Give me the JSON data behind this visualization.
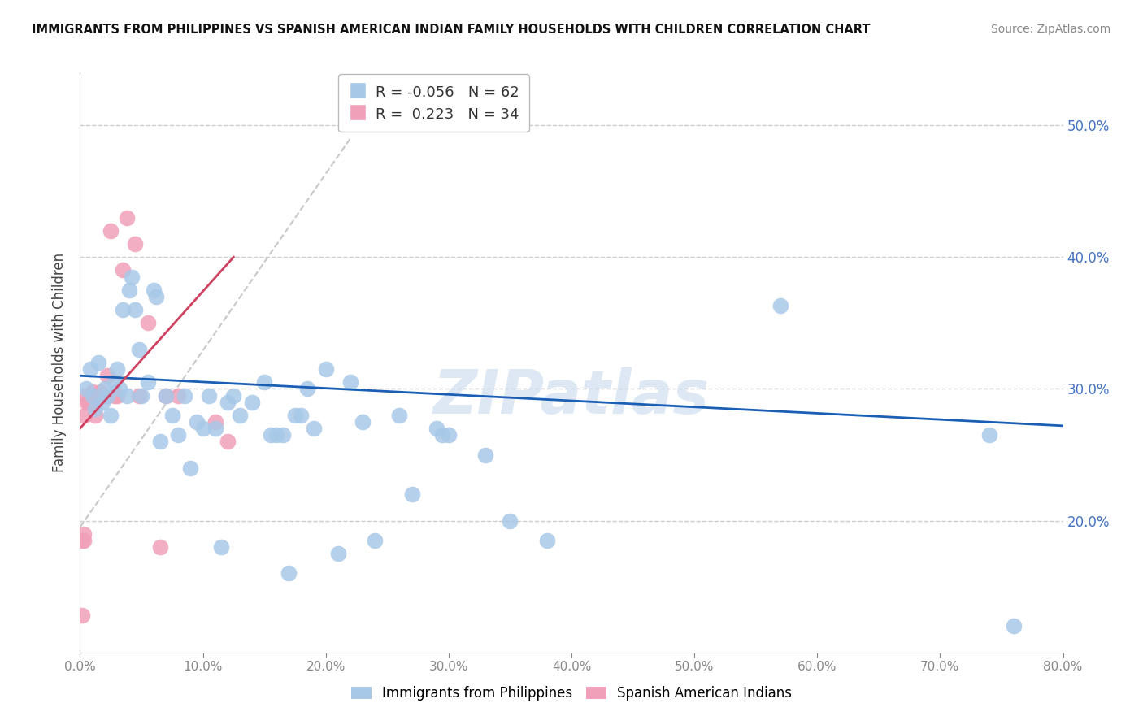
{
  "title": "IMMIGRANTS FROM PHILIPPINES VS SPANISH AMERICAN INDIAN FAMILY HOUSEHOLDS WITH CHILDREN CORRELATION CHART",
  "source": "Source: ZipAtlas.com",
  "ylabel": "Family Households with Children",
  "legend_label_blue": "Immigrants from Philippines",
  "legend_label_pink": "Spanish American Indians",
  "R_blue": -0.056,
  "N_blue": 62,
  "R_pink": 0.223,
  "N_pink": 34,
  "color_blue": "#a8c8e8",
  "color_pink": "#f0a0b8",
  "trendline_blue": "#1a5fb5",
  "trendline_pink": "#d04060",
  "trendline_gray": "#c8c8c8",
  "watermark": "ZIPatlas",
  "xlim": [
    0.0,
    0.8
  ],
  "ylim": [
    0.1,
    0.54
  ],
  "xticks": [
    0.0,
    0.1,
    0.2,
    0.3,
    0.4,
    0.5,
    0.6,
    0.7,
    0.8
  ],
  "yticks_right": [
    0.2,
    0.3,
    0.4,
    0.5
  ],
  "blue_trend_x": [
    0.0,
    0.8
  ],
  "blue_trend_y": [
    0.31,
    0.272
  ],
  "pink_trend_x": [
    0.0,
    0.125
  ],
  "pink_trend_y": [
    0.27,
    0.4
  ],
  "gray_line_x": [
    0.0,
    0.22
  ],
  "gray_line_y": [
    0.195,
    0.49
  ],
  "blue_x": [
    0.005,
    0.008,
    0.01,
    0.012,
    0.015,
    0.018,
    0.02,
    0.022,
    0.025,
    0.028,
    0.03,
    0.032,
    0.035,
    0.038,
    0.04,
    0.042,
    0.045,
    0.048,
    0.05,
    0.055,
    0.06,
    0.062,
    0.065,
    0.07,
    0.075,
    0.08,
    0.085,
    0.09,
    0.095,
    0.1,
    0.105,
    0.11,
    0.115,
    0.12,
    0.125,
    0.13,
    0.14,
    0.15,
    0.155,
    0.16,
    0.165,
    0.17,
    0.175,
    0.18,
    0.185,
    0.19,
    0.2,
    0.21,
    0.22,
    0.23,
    0.24,
    0.26,
    0.27,
    0.29,
    0.295,
    0.3,
    0.33,
    0.35,
    0.38,
    0.57,
    0.74,
    0.76
  ],
  "blue_y": [
    0.3,
    0.315,
    0.295,
    0.285,
    0.32,
    0.29,
    0.3,
    0.295,
    0.28,
    0.305,
    0.315,
    0.3,
    0.36,
    0.295,
    0.375,
    0.385,
    0.36,
    0.33,
    0.295,
    0.305,
    0.375,
    0.37,
    0.26,
    0.295,
    0.28,
    0.265,
    0.295,
    0.24,
    0.275,
    0.27,
    0.295,
    0.27,
    0.18,
    0.29,
    0.295,
    0.28,
    0.29,
    0.305,
    0.265,
    0.265,
    0.265,
    0.16,
    0.28,
    0.28,
    0.3,
    0.27,
    0.315,
    0.175,
    0.305,
    0.275,
    0.185,
    0.28,
    0.22,
    0.27,
    0.265,
    0.265,
    0.25,
    0.2,
    0.185,
    0.363,
    0.265,
    0.12
  ],
  "pink_x": [
    0.002,
    0.002,
    0.003,
    0.003,
    0.004,
    0.005,
    0.006,
    0.007,
    0.007,
    0.008,
    0.009,
    0.01,
    0.01,
    0.011,
    0.012,
    0.013,
    0.015,
    0.017,
    0.018,
    0.02,
    0.022,
    0.025,
    0.028,
    0.03,
    0.035,
    0.038,
    0.045,
    0.048,
    0.055,
    0.065,
    0.07,
    0.08,
    0.11,
    0.12
  ],
  "pink_y": [
    0.128,
    0.185,
    0.185,
    0.19,
    0.28,
    0.295,
    0.29,
    0.29,
    0.29,
    0.29,
    0.295,
    0.298,
    0.295,
    0.295,
    0.28,
    0.295,
    0.295,
    0.298,
    0.295,
    0.295,
    0.31,
    0.42,
    0.295,
    0.295,
    0.39,
    0.43,
    0.41,
    0.295,
    0.35,
    0.18,
    0.295,
    0.295,
    0.275,
    0.26
  ]
}
